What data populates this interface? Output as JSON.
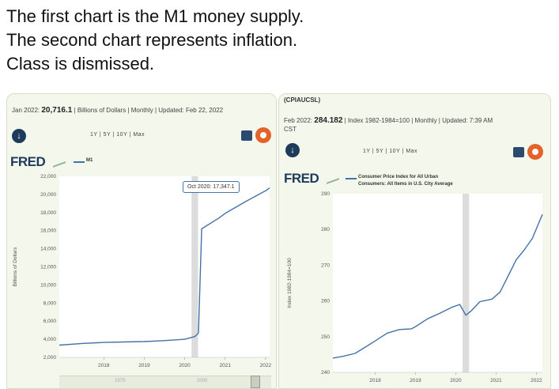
{
  "caption": [
    "The first chart is the M1 money supply.",
    "The second chart represents inflation.",
    "Class is dismissed."
  ],
  "left": {
    "info_date": "Jan 2022:",
    "info_value": "20,716.1",
    "info_rest": "| Billions of Dollars | Monthly | Updated: Feb 22, 2022",
    "ranges": "1Y | 5Y | 10Y | Max",
    "brand": "FRED",
    "legend": "M1",
    "tooltip": "Oct 2020: 17,347.1",
    "nav_labels": [
      "1975",
      "2000"
    ]
  },
  "right": {
    "series_id": "(CPIAUCSL)",
    "info_date": "Feb 2022:",
    "info_value": "284.182",
    "info_rest": "| Index 1982-1984=100 | Monthly | Updated: 7:39 AM",
    "info_rest2": "CST",
    "ranges": "1Y | 5Y | 10Y | Max",
    "brand": "FRED",
    "legend_line1": "Consumer Price Index for All Urban",
    "legend_line2": "Consumers: All Items in U.S. City Average"
  },
  "colors": {
    "series": "#4572a7",
    "recession": "#dcdcdc",
    "brand": "#1f3b5c",
    "settings": "#e4632a"
  },
  "chart_data": [
    {
      "type": "line",
      "ylabel": "Billions of Dollars",
      "ylim": [
        2000,
        22000
      ],
      "yticks": [
        2000,
        4000,
        6000,
        8000,
        10000,
        12000,
        14000,
        16000,
        18000,
        20000,
        22000
      ],
      "ytick_labels": [
        "2,000",
        "4,000",
        "6,000",
        "8,000",
        "10,000",
        "12,000",
        "14,000",
        "16,000",
        "18,000",
        "20,000",
        "22,000"
      ],
      "xlim": [
        2016.9,
        2022.1
      ],
      "xticks": [
        2018,
        2019,
        2020,
        2021,
        2022
      ],
      "recession": [
        2020.17,
        2020.33
      ],
      "grid": false,
      "series": [
        {
          "name": "M1",
          "x": [
            2016.9,
            2017.5,
            2018.0,
            2018.5,
            2019.0,
            2019.5,
            2020.0,
            2020.25,
            2020.34,
            2020.42,
            2020.83,
            2021.0,
            2021.5,
            2022.0,
            2022.1
          ],
          "y": [
            3350,
            3550,
            3650,
            3700,
            3750,
            3850,
            4000,
            4300,
            4700,
            16200,
            17347,
            17900,
            19200,
            20400,
            20716
          ]
        }
      ]
    },
    {
      "type": "line",
      "ylabel": "Index 1982-1984=100",
      "ylim": [
        240,
        290
      ],
      "yticks": [
        240,
        250,
        260,
        270,
        280,
        290
      ],
      "ytick_labels": [
        "240",
        "250",
        "260",
        "270",
        "280",
        "290"
      ],
      "xlim": [
        2016.95,
        2022.15
      ],
      "xticks": [
        2018,
        2019,
        2020,
        2021,
        2022
      ],
      "recession": [
        2020.17,
        2020.33
      ],
      "grid": false,
      "series": [
        {
          "name": "Consumer Price Index for All Urban Consumers: All Items in U.S. City Average",
          "x": [
            2016.95,
            2017.2,
            2017.5,
            2017.8,
            2018.0,
            2018.3,
            2018.6,
            2018.9,
            2019.0,
            2019.3,
            2019.6,
            2019.9,
            2020.1,
            2020.25,
            2020.4,
            2020.6,
            2020.9,
            2021.1,
            2021.3,
            2021.5,
            2021.7,
            2021.9,
            2022.15
          ],
          "y": [
            244,
            244.5,
            245.3,
            247.4,
            248.8,
            251.0,
            252.0,
            252.2,
            252.8,
            255.0,
            256.5,
            258.2,
            259.0,
            256.0,
            257.4,
            259.8,
            260.5,
            262.5,
            267.0,
            271.5,
            274.3,
            277.5,
            284.2
          ]
        }
      ]
    }
  ]
}
